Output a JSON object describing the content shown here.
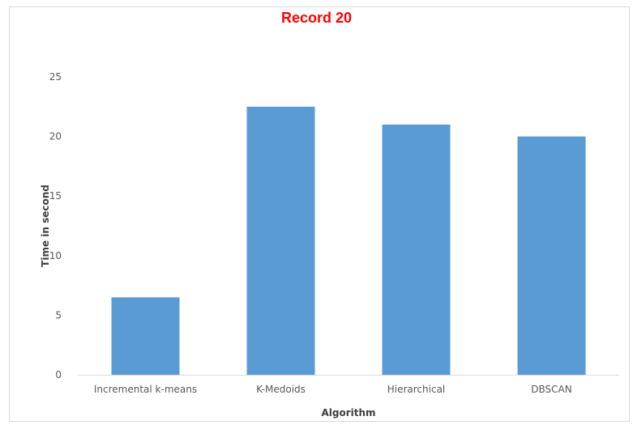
{
  "chart_data": {
    "type": "bar",
    "title": "Record 20",
    "xlabel": "Algorithm",
    "ylabel": "Time in second",
    "categories": [
      "Incremental k-means",
      "K-Medoids",
      "Hierarchical",
      "DBSCAN"
    ],
    "values": [
      6.5,
      22.5,
      21,
      20
    ],
    "ylim": [
      0,
      25
    ],
    "yticks": [
      0,
      5,
      10,
      15,
      20,
      25
    ],
    "grid": false,
    "legend": "none",
    "bar_color": "#5b9bd5",
    "title_color": "#ff0000"
  }
}
